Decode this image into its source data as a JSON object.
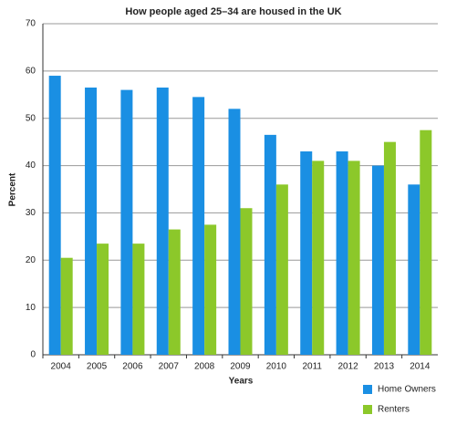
{
  "chart_data": {
    "type": "bar",
    "title": "How people aged 25–34 are housed in the UK",
    "x_label": "Years",
    "y_label": "Percent",
    "categories": [
      "2004",
      "2005",
      "2006",
      "2007",
      "2008",
      "2009",
      "2010",
      "2011",
      "2012",
      "2013",
      "2014"
    ],
    "series": [
      {
        "name": "Home Owners",
        "color": "#1a8fe3",
        "values": [
          59,
          56.5,
          56,
          56.5,
          54.5,
          52,
          46.5,
          43,
          43,
          40,
          36
        ]
      },
      {
        "name": "Renters",
        "color": "#8cc82a",
        "values": [
          20.5,
          23.5,
          23.5,
          26.5,
          27.5,
          31,
          36,
          41,
          41,
          45,
          47.5
        ]
      }
    ],
    "ylim": [
      0,
      70
    ],
    "yticks": [
      0,
      10,
      20,
      30,
      40,
      50,
      60,
      70
    ],
    "grid": true,
    "legend": "bottom-right"
  }
}
